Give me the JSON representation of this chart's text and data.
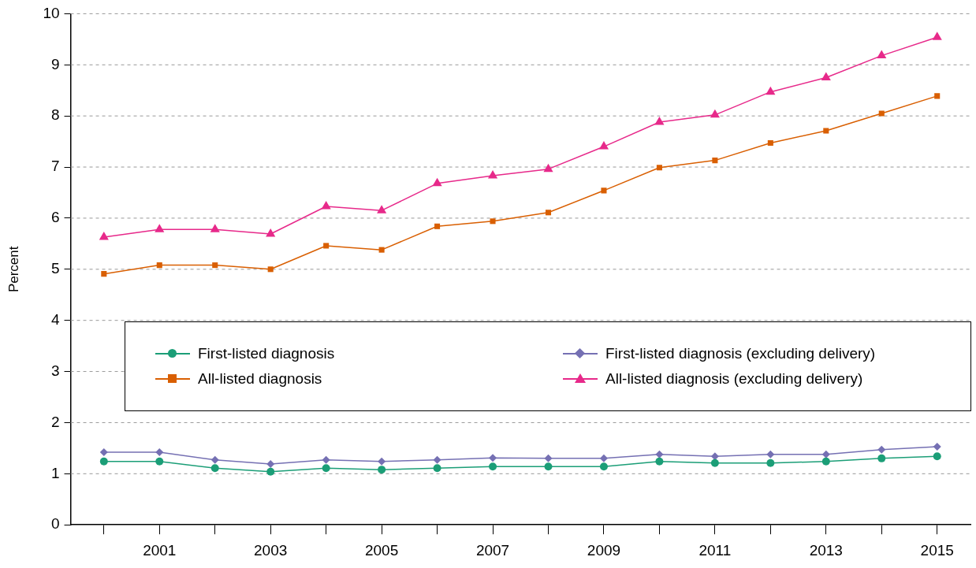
{
  "chart_data": {
    "type": "line",
    "ylabel": "Percent",
    "x": [
      2000,
      2001,
      2002,
      2003,
      2004,
      2005,
      2006,
      2007,
      2008,
      2009,
      2010,
      2011,
      2012,
      2013,
      2014,
      2015
    ],
    "xlim": [
      1999.4,
      2015.6
    ],
    "xticks": [
      {
        "value": 2000,
        "label": null
      },
      2001,
      {
        "value": 2002,
        "label": null
      },
      2003,
      {
        "value": 2004,
        "label": null
      },
      2005,
      {
        "value": 2006,
        "label": null
      },
      2007,
      {
        "value": 2008,
        "label": null
      },
      2009,
      {
        "value": 2010,
        "label": null
      },
      2011,
      {
        "value": 2012,
        "label": null
      },
      2013,
      {
        "value": 2014,
        "label": null
      },
      2015
    ],
    "ylim": [
      0,
      10
    ],
    "yticks": [
      0,
      1,
      2,
      3,
      4,
      5,
      6,
      7,
      8,
      9,
      10
    ],
    "grid": "y",
    "legend": "center",
    "line_style": "solid",
    "series": [
      {
        "name": "First-listed diagnosis",
        "color": "#1b9e77",
        "marker": "circle",
        "values": [
          1.24,
          1.24,
          1.11,
          1.04,
          1.11,
          1.08,
          1.11,
          1.14,
          1.14,
          1.14,
          1.24,
          1.21,
          1.21,
          1.24,
          1.3,
          1.34
        ]
      },
      {
        "name": "First-listed diagnosis (excluding delivery)",
        "color": "#7570b3",
        "marker": "diamond",
        "values": [
          1.42,
          1.42,
          1.27,
          1.19,
          1.27,
          1.24,
          1.27,
          1.31,
          1.3,
          1.3,
          1.38,
          1.34,
          1.38,
          1.38,
          1.47,
          1.53
        ]
      },
      {
        "name": "All-listed diagnosis",
        "color": "#d95f02",
        "marker": "square",
        "values": [
          4.91,
          5.08,
          5.08,
          5.0,
          5.46,
          5.38,
          5.84,
          5.94,
          6.11,
          6.54,
          6.99,
          7.13,
          7.47,
          7.71,
          8.05,
          8.39
        ]
      },
      {
        "name": "All-listed diagnosis (excluding delivery)",
        "color": "#e7298a",
        "marker": "triangle",
        "values": [
          5.63,
          5.78,
          5.78,
          5.69,
          6.23,
          6.15,
          6.68,
          6.83,
          6.96,
          7.4,
          7.88,
          8.02,
          8.47,
          8.75,
          9.18,
          9.54
        ]
      }
    ]
  }
}
